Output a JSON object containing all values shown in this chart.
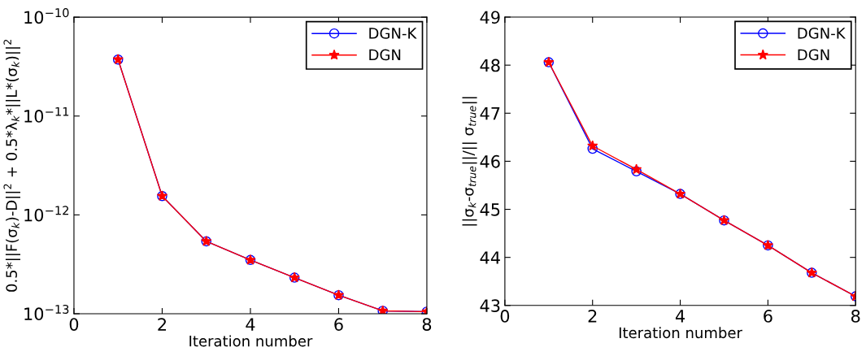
{
  "chart_data": [
    {
      "type": "line",
      "xlabel": "Iteration number",
      "ylabel": "0.5*||F(σ$_{k}$)-D||$^{2}$ + 0.5*λ$_{k}$*||L*(σ$_{k}$)||$^{2}$",
      "x": [
        1,
        2,
        3,
        4,
        5,
        6,
        7,
        8
      ],
      "series": [
        {
          "name": "DGN-K",
          "color": "#0000ff",
          "marker": "circle",
          "values": [
            3.73e-11,
            1.55e-12,
            5.4e-13,
            3.5e-13,
            2.32e-13,
            1.54e-13,
            1.07e-13,
            1.05e-13
          ]
        },
        {
          "name": "DGN",
          "color": "#ff0000",
          "marker": "star",
          "values": [
            3.73e-11,
            1.55e-12,
            5.4e-13,
            3.5e-13,
            2.32e-13,
            1.54e-13,
            1.07e-13,
            1.05e-13
          ]
        }
      ],
      "log": "y",
      "xlim": [
        0,
        8
      ],
      "xticks": [
        0,
        2,
        4,
        6,
        8
      ],
      "ylim": [
        1e-13,
        1e-10
      ],
      "yticks": [
        {
          "value": 1e-13,
          "label": "10$^{−13}$"
        },
        {
          "value": 1e-12,
          "label": "10$^{−12}$"
        },
        {
          "value": 1e-11,
          "label": "10$^{−11}$"
        },
        {
          "value": 1e-10,
          "label": "10$^{−10}$"
        }
      ],
      "grid": false,
      "legend": "top right",
      "line_style": "solid"
    },
    {
      "type": "line",
      "xlabel": "Iteration number",
      "ylabel": "||σ$_{k}$-σ$_{true}$||/|| σ$_{true}$||",
      "x": [
        1,
        2,
        3,
        4,
        5,
        6,
        7,
        8
      ],
      "series": [
        {
          "name": "DGN-K",
          "color": "#0000ff",
          "marker": "circle",
          "values": [
            48.06,
            46.26,
            45.79,
            45.32,
            44.77,
            44.25,
            43.68,
            43.19
          ]
        },
        {
          "name": "DGN",
          "color": "#ff0000",
          "marker": "star",
          "values": [
            48.06,
            46.32,
            45.83,
            45.32,
            44.77,
            44.25,
            43.68,
            43.19
          ]
        }
      ],
      "xlim": [
        0,
        8
      ],
      "xticks": [
        0,
        2,
        4,
        6,
        8
      ],
      "ylim": [
        43,
        49
      ],
      "yticks": [
        43,
        44,
        45,
        46,
        47,
        48,
        49
      ],
      "grid": false,
      "legend": "top right",
      "line_style": "solid"
    }
  ]
}
